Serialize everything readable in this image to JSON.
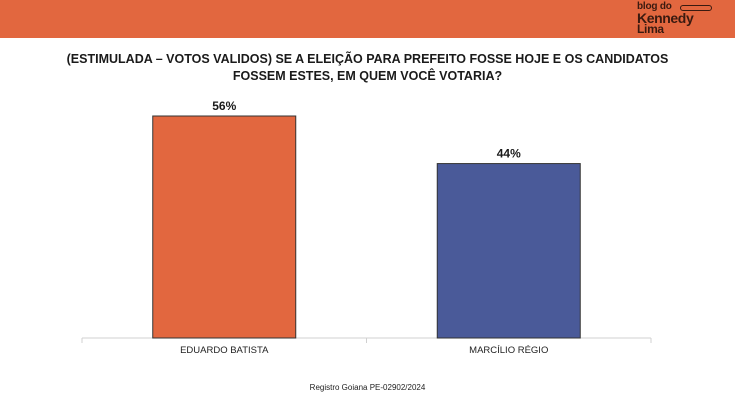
{
  "brand": {
    "line1": "blog do",
    "line2": "Kennedy",
    "line3": "Lima",
    "color": "#E2673F"
  },
  "chart_data": {
    "type": "bar",
    "title": "(ESTIMULADA – VOTOS VALIDOS) SE A ELEIÇÃO PARA PREFEITO FOSSE HOJE E OS CANDIDATOS FOSSEM ESTES, EM QUEM VOCÊ VOTARIA?",
    "categories": [
      "EDUARDO BATISTA",
      "MARCÍLIO RÉGIO"
    ],
    "values": [
      56,
      44
    ],
    "data_labels": [
      "56%",
      "44%"
    ],
    "colors": [
      "#E2673F",
      "#4A5A99"
    ],
    "ylim": [
      0,
      56
    ],
    "grid": false,
    "legend": "none"
  },
  "footer": "Registro Goiana PE-02902/2024"
}
